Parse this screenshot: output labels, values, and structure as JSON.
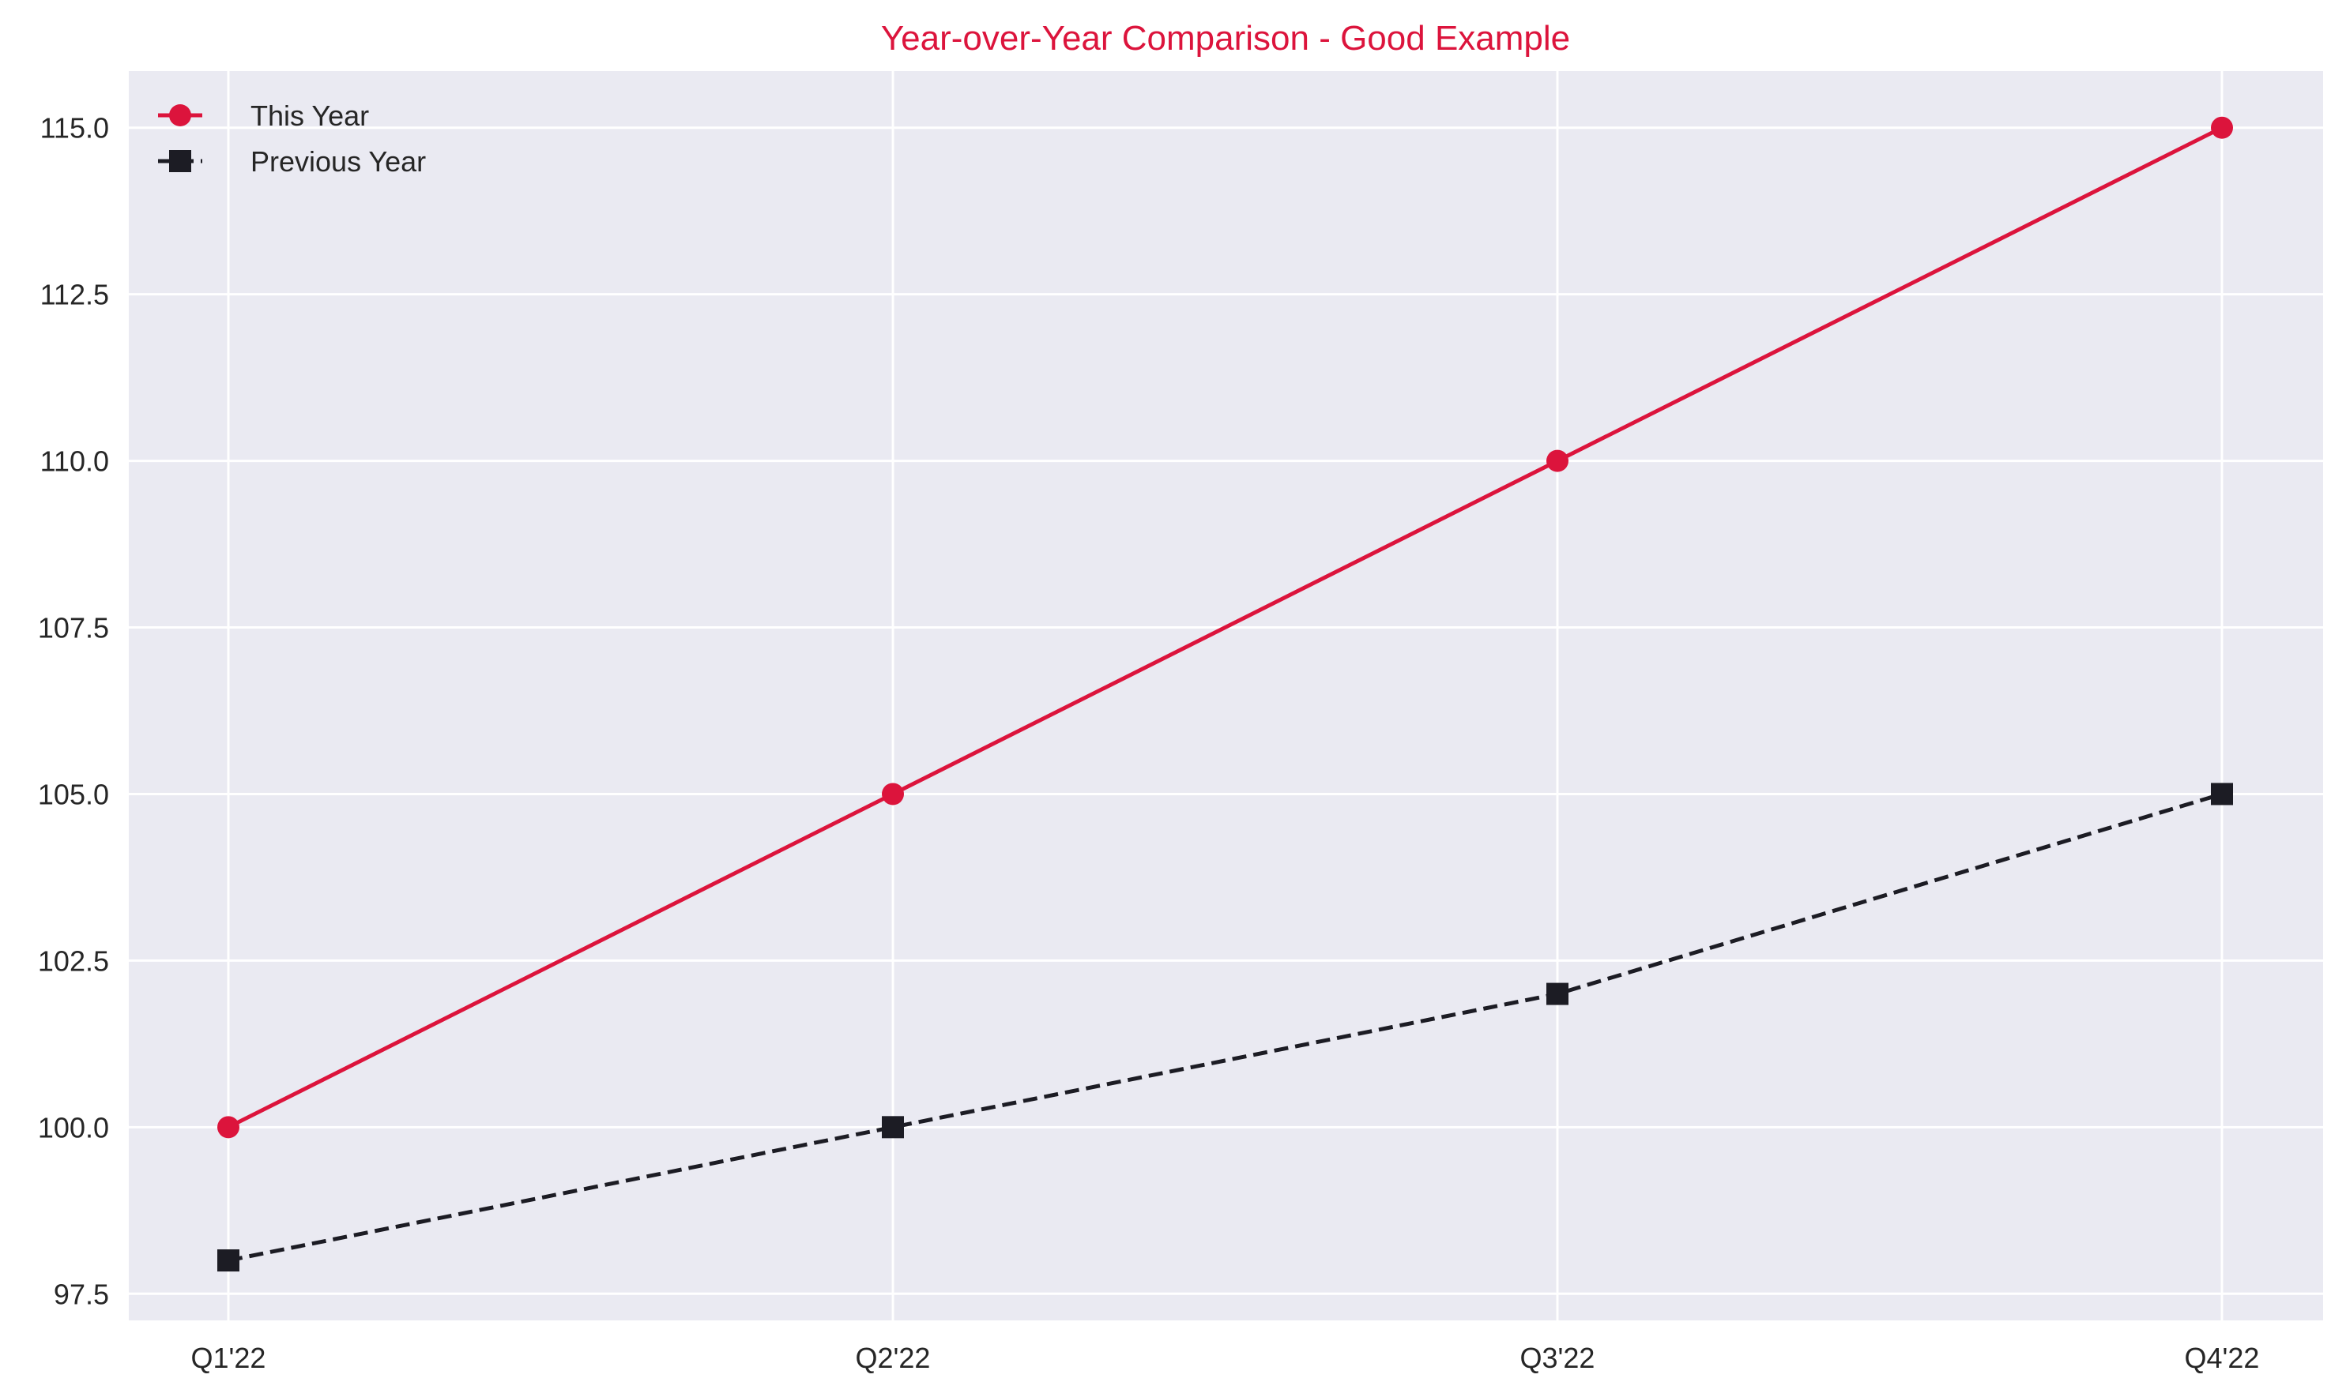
{
  "colors": {
    "plot_background": "#eaeaf2",
    "grid": "#ffffff",
    "title": "#dc143c",
    "this_year": "#dc143c",
    "previous_year": "#1c1c24"
  },
  "chart_data": {
    "type": "line",
    "title": "Year-over-Year Comparison - Good Example",
    "xlabel": "",
    "ylabel": "",
    "categories": [
      "Q1'22",
      "Q2'22",
      "Q3'22",
      "Q4'22"
    ],
    "series": [
      {
        "name": "This Year",
        "values": [
          100,
          105,
          110,
          115
        ],
        "color": "#dc143c",
        "line_style": "solid",
        "marker": "circle"
      },
      {
        "name": "Previous Year",
        "values": [
          98,
          100,
          102,
          105
        ],
        "color": "#1c1c24",
        "line_style": "dashed",
        "marker": "square"
      }
    ],
    "ylim": [
      97.1,
      115.85
    ],
    "yticks": [
      97.5,
      100.0,
      102.5,
      105.0,
      107.5,
      110.0,
      112.5,
      115.0
    ],
    "ytick_labels": [
      "97.5",
      "100.0",
      "102.5",
      "105.0",
      "107.5",
      "110.0",
      "112.5",
      "115.0"
    ],
    "grid": true,
    "legend_position": "top-left"
  }
}
